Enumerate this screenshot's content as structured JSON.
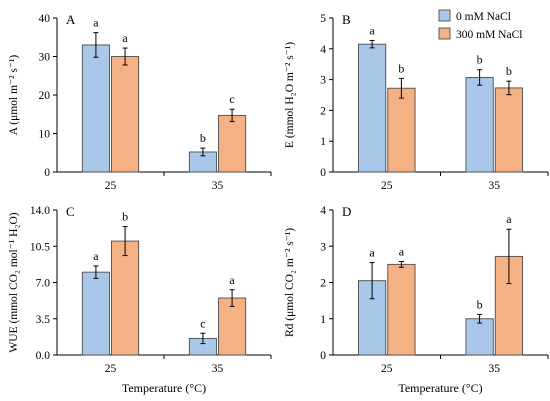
{
  "legend": [
    {
      "label": "0 mM NaCl",
      "color": "#a9c7e8"
    },
    {
      "label": "300 mM NaCl",
      "color": "#f4b183"
    }
  ],
  "xlabel": "Temperature (°C)",
  "chart_data": [
    {
      "type": "bar",
      "panel": "A",
      "ylabel": "A (μmol m⁻² s⁻¹)",
      "ylim": [
        0,
        40
      ],
      "yticks": [
        "0",
        "10",
        "20",
        "30",
        "40"
      ],
      "categories": [
        "25",
        "35"
      ],
      "series": [
        {
          "name": "0 mM NaCl",
          "values": [
            33.0,
            5.2
          ],
          "errors": [
            3.2,
            1.0
          ],
          "letters": [
            "a",
            "b"
          ]
        },
        {
          "name": "300 mM NaCl",
          "values": [
            30.0,
            14.7
          ],
          "errors": [
            2.2,
            1.6
          ],
          "letters": [
            "a",
            "c"
          ]
        }
      ]
    },
    {
      "type": "bar",
      "panel": "B",
      "ylabel": "E (mmol H₂O m⁻² s⁻¹)",
      "ylim": [
        0,
        5
      ],
      "yticks": [
        "0",
        "1",
        "2",
        "3",
        "4",
        "5"
      ],
      "categories": [
        "25",
        "35"
      ],
      "series": [
        {
          "name": "0 mM NaCl",
          "values": [
            4.15,
            3.07
          ],
          "errors": [
            0.12,
            0.25
          ],
          "letters": [
            "a",
            "b"
          ]
        },
        {
          "name": "300 mM NaCl",
          "values": [
            2.72,
            2.73
          ],
          "errors": [
            0.32,
            0.22
          ],
          "letters": [
            "b",
            "b"
          ]
        }
      ]
    },
    {
      "type": "bar",
      "panel": "C",
      "ylabel": "WUE (mmol CO₂ mol⁻¹ H₂O)",
      "ylim": [
        0,
        14
      ],
      "yticks": [
        "0.0",
        "3.5",
        "7.0",
        "10.5",
        "14.0"
      ],
      "categories": [
        "25",
        "35"
      ],
      "series": [
        {
          "name": "0 mM NaCl",
          "values": [
            8.0,
            1.6
          ],
          "errors": [
            0.6,
            0.5
          ],
          "letters": [
            "a",
            "c"
          ]
        },
        {
          "name": "300 mM NaCl",
          "values": [
            11.0,
            5.5
          ],
          "errors": [
            1.4,
            0.8
          ],
          "letters": [
            "b",
            "a"
          ]
        }
      ]
    },
    {
      "type": "bar",
      "panel": "D",
      "ylabel": "Rd (μmol CO₂ m⁻² s⁻¹)",
      "ylim": [
        0,
        4
      ],
      "yticks": [
        "0",
        "1",
        "2",
        "3",
        "4"
      ],
      "categories": [
        "25",
        "35"
      ],
      "series": [
        {
          "name": "0 mM NaCl",
          "values": [
            2.05,
            1.0
          ],
          "errors": [
            0.5,
            0.12
          ],
          "letters": [
            "a",
            "b"
          ]
        },
        {
          "name": "300 mM NaCl",
          "values": [
            2.5,
            2.72
          ],
          "errors": [
            0.08,
            0.75
          ],
          "letters": [
            "a",
            "a"
          ]
        }
      ]
    }
  ]
}
